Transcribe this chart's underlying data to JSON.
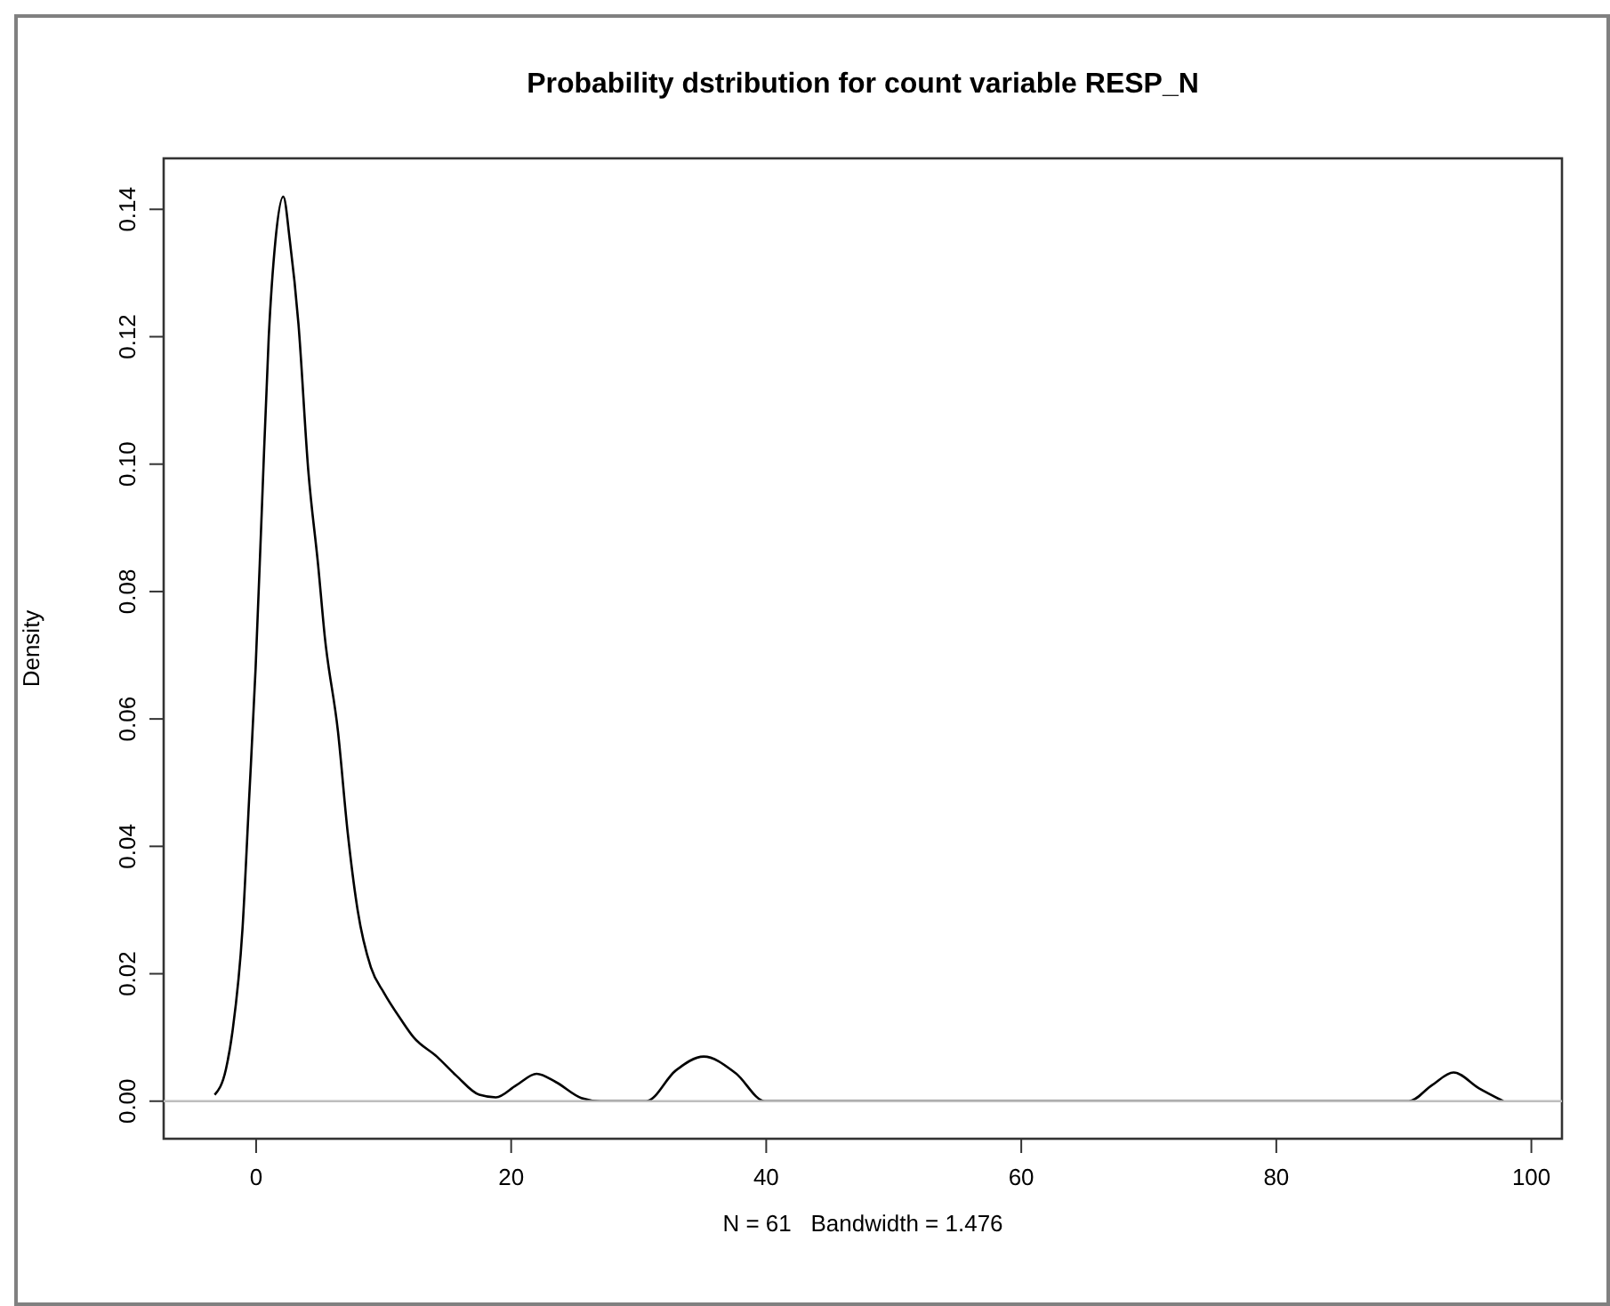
{
  "chart_data": {
    "type": "line",
    "title": "Probability dstribution for count variable RESP_N",
    "xlabel": "N = 61   Bandwidth = 1.476",
    "ylabel": "Density",
    "series": [
      {
        "color": "#000000",
        "x": [
          -3.25,
          -2.37,
          -1.85,
          -1.07,
          -0.56,
          -0.04,
          0.47,
          0.99,
          1.51,
          2.13,
          2.65,
          3.32,
          4.09,
          4.87,
          5.38,
          6.42,
          7.19,
          7.96,
          9.0,
          10.03,
          11.3,
          12.36,
          14.17,
          15.7,
          17.5,
          18.8,
          20.4,
          22.0,
          23.5,
          25.5,
          27,
          30.6,
          32.9,
          35.1,
          37.6,
          39.9,
          60,
          90.4,
          92.2,
          93.9,
          95.9,
          97.8
        ],
        "values": [
          0.001,
          0.005,
          0.011,
          0.027,
          0.047,
          0.068,
          0.094,
          0.12,
          0.135,
          0.142,
          0.135,
          0.122,
          0.099,
          0.084,
          0.073,
          0.058,
          0.042,
          0.03,
          0.021,
          0.017,
          0.013,
          0.01,
          0.007,
          0.004,
          0.001,
          0.0006,
          0.0025,
          0.0043,
          0.003,
          0.0005,
          0,
          0,
          0.0048,
          0.007,
          0.0044,
          0,
          0,
          0,
          0.0025,
          0.0045,
          0.002,
          0
        ]
      }
    ],
    "xlim": [
      -7.25,
      102.4
    ],
    "ylim": [
      -0.0059,
      0.148
    ],
    "xticks": [
      0,
      20,
      40,
      60,
      80,
      100
    ],
    "yticks": [
      {
        "value": 0,
        "label": "0.00"
      },
      {
        "value": 0.02,
        "label": "0.02"
      },
      {
        "value": 0.04,
        "label": "0.04"
      },
      {
        "value": 0.06,
        "label": "0.06"
      },
      {
        "value": 0.08,
        "label": "0.08"
      },
      {
        "value": 0.1,
        "label": "0.10"
      },
      {
        "value": 0.12,
        "label": "0.12"
      },
      {
        "value": 0.14,
        "label": "0.14"
      }
    ],
    "ref_lines": [
      {
        "axis": "y",
        "value": 0,
        "color": "#bebebe"
      }
    ],
    "grid": false,
    "marker": "none",
    "line_style": "solid"
  }
}
